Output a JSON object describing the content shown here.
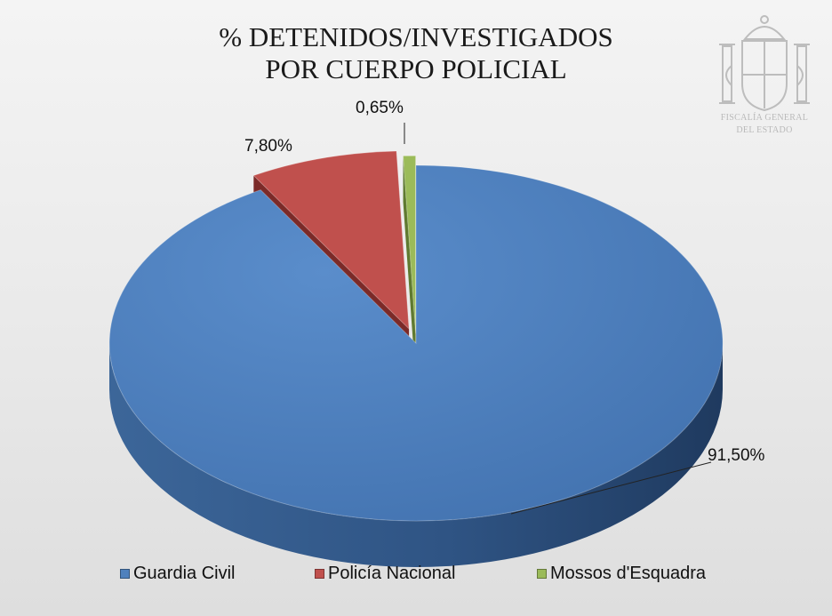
{
  "chart_data": {
    "type": "pie",
    "title_lines": [
      "% DETENIDOS/INVESTIGADOS",
      "POR CUERPO POLICIAL"
    ],
    "categories": [
      "Guardia Civil",
      "Policía Nacional",
      "Mossos d'Esquadra"
    ],
    "values": [
      91.5,
      7.8,
      0.65
    ],
    "data_labels": [
      "91,50%",
      "7,80%",
      "0,65%"
    ],
    "colors": [
      "#4f81bd",
      "#c0504d",
      "#9bbb59"
    ],
    "legend_position": "bottom",
    "three_d": true,
    "exploded": true
  },
  "branding": {
    "logo_icon": "spain-coat-of-arms-icon",
    "logo_lines": [
      "FISCALÍA GENERAL",
      "DEL ESTADO"
    ]
  }
}
